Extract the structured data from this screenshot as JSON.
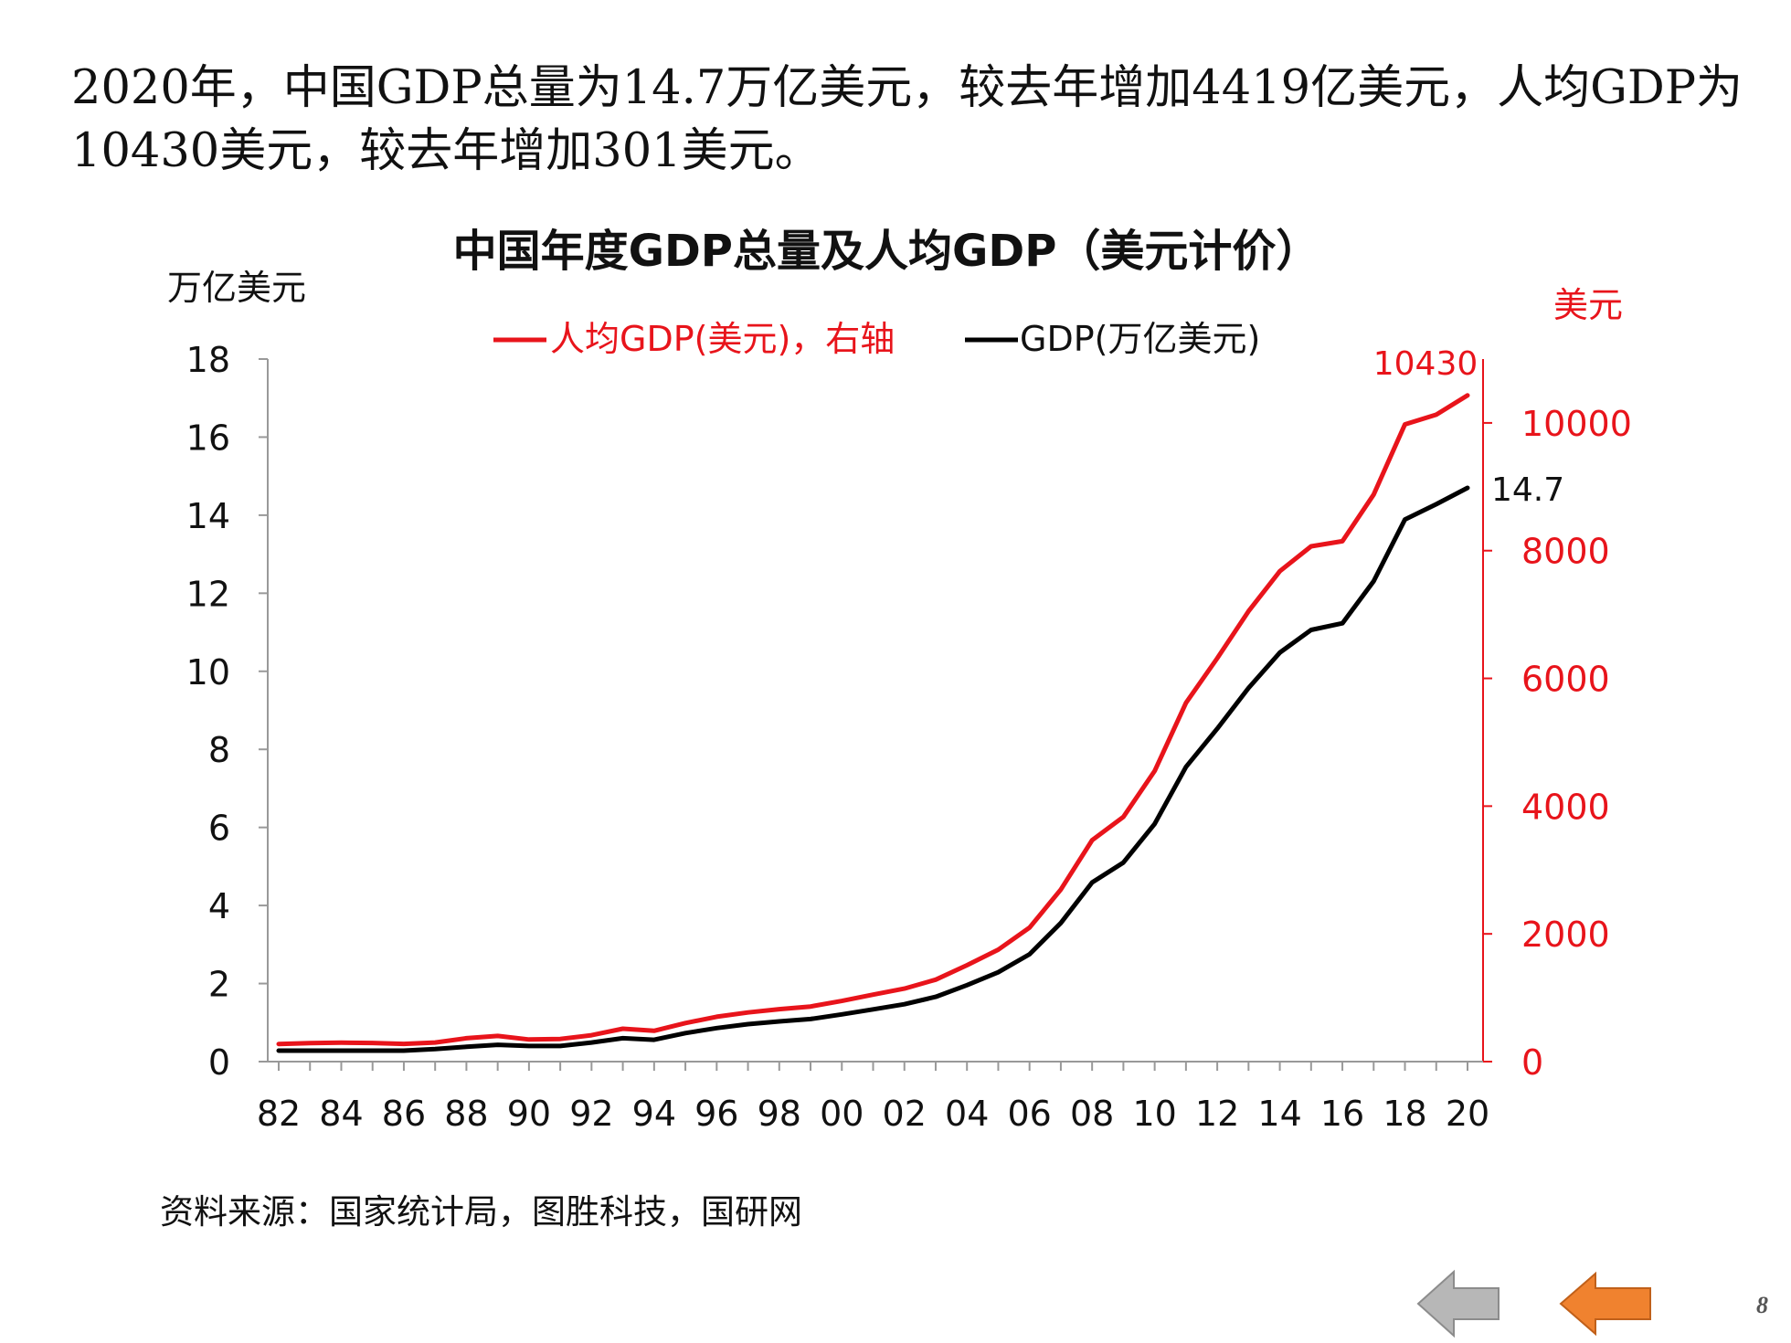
{
  "slide": {
    "headline": "2020年，中国GDP总量为14.7万亿美元，较去年增加4419亿美元，人均GDP为10430美元，较去年增加301美元。",
    "source": "资料来源：国家统计局，图胜科技，国研网",
    "page_number": "8",
    "nav": {
      "prev_icon": "left-arrow-icon",
      "prev_color": "#b7b7b7",
      "back_icon": "left-arrow-icon",
      "back_color": "#f0822f"
    }
  },
  "chart_data": {
    "type": "line",
    "title": "中国年度GDP总量及人均GDP（美元计价）",
    "left_axis_unit": "万亿美元",
    "right_axis_unit": "美元",
    "x": [
      "82",
      "83",
      "84",
      "85",
      "86",
      "87",
      "88",
      "89",
      "90",
      "91",
      "92",
      "93",
      "94",
      "95",
      "96",
      "97",
      "98",
      "99",
      "00",
      "01",
      "02",
      "03",
      "04",
      "05",
      "06",
      "07",
      "08",
      "09",
      "10",
      "11",
      "12",
      "13",
      "14",
      "15",
      "16",
      "17",
      "18",
      "19",
      "20"
    ],
    "x_tick_labels": [
      "82",
      "84",
      "86",
      "88",
      "90",
      "92",
      "94",
      "96",
      "98",
      "00",
      "02",
      "04",
      "06",
      "08",
      "10",
      "12",
      "14",
      "16",
      "18",
      "20"
    ],
    "ylim_left": [
      0,
      18
    ],
    "yticks_left": [
      "0",
      "2",
      "4",
      "6",
      "8",
      "10",
      "12",
      "14",
      "16",
      "18"
    ],
    "ylim_right": [
      0,
      11000
    ],
    "yticks_right": [
      "0",
      "2000",
      "4000",
      "6000",
      "8000",
      "10000"
    ],
    "grid": false,
    "legend_position": "top",
    "series": [
      {
        "name": "人均GDP(美元)，右轴",
        "axis": "right",
        "color": "#e8141b",
        "values": [
          276,
          291,
          296,
          292,
          278,
          299,
          366,
          402,
          346,
          355,
          413,
          515,
          482,
          603,
          703,
          770,
          821,
          863,
          950,
          1048,
          1143,
          1283,
          1509,
          1752,
          2099,
          2693,
          3468,
          3832,
          4550,
          5618,
          6316,
          7051,
          7679,
          8067,
          8148,
          8879,
          9977,
          10129,
          10430
        ]
      },
      {
        "name": "GDP(万亿美元)",
        "axis": "left",
        "color": "#000000",
        "values": [
          0.28,
          0.28,
          0.28,
          0.28,
          0.28,
          0.32,
          0.38,
          0.43,
          0.4,
          0.4,
          0.49,
          0.6,
          0.56,
          0.73,
          0.86,
          0.96,
          1.03,
          1.09,
          1.21,
          1.34,
          1.47,
          1.66,
          1.96,
          2.29,
          2.75,
          3.55,
          4.59,
          5.1,
          6.09,
          7.55,
          8.53,
          9.57,
          10.48,
          11.06,
          11.23,
          12.31,
          13.89,
          14.28,
          14.7
        ]
      }
    ],
    "annotations": [
      {
        "series": "人均GDP(美元)，右轴",
        "text": "10430"
      },
      {
        "series": "GDP(万亿美元)",
        "text": "14.7"
      }
    ]
  }
}
